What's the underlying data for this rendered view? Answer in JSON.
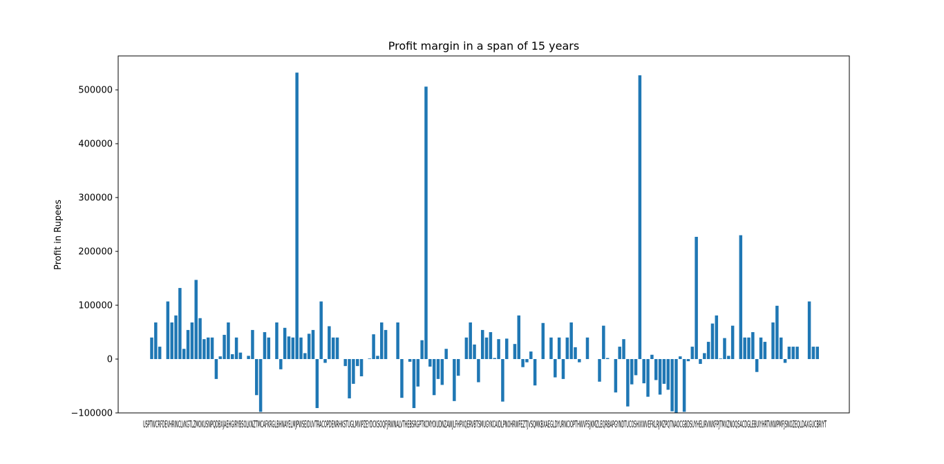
{
  "chart_data": {
    "type": "bar",
    "title": "Profit margin in a span of 15 years",
    "xlabel": "",
    "ylabel": "Profit in Rupees",
    "ylim": [
      -100000,
      563000
    ],
    "yticks": [
      -100000,
      0,
      100000,
      200000,
      300000,
      400000,
      500000
    ],
    "ytick_labels": [
      "−100000",
      "0",
      "100000",
      "200000",
      "300000",
      "400000",
      "500000"
    ],
    "grid": false,
    "bar_color": "#1f77b4",
    "x_tick_text": "USPTWCRFDEVHRINCLVKGTLZMOKUSNPQDBXJAEHGIRYBSOLKNZTMCAFKRGLBHNAYELMJPWSEIDUVTRACOPDENRHKSTUGLMVIPZEYDCKSOQFJRWNALVTHEBSRGPTKCMYOIUDNZAWJLFHPXQERVBTSMUGYKCAIDLPNOHRWFEZTJVSQMKBXAEGLDYURNCIOPTHWVFSJKMZLEQRBAPGYNDTUCOSHIXWVEFKLRJMZPQTNAOCGBDSUYHELIRVWKFPJTMXZNOQSACDGLEBUIYHRTVKWPMFJSNOZEQLDAXGUCBRIYT",
    "values": [
      40000,
      68000,
      23000,
      0,
      107000,
      68000,
      81000,
      132000,
      19000,
      54000,
      68000,
      147000,
      76000,
      37000,
      40000,
      40000,
      -37000,
      5000,
      45000,
      68000,
      9000,
      40000,
      12000,
      0,
      6000,
      54000,
      -67000,
      -98000,
      50000,
      40000,
      0,
      68000,
      -19000,
      58000,
      42000,
      40000,
      532000,
      40000,
      11000,
      47000,
      54000,
      -91000,
      107000,
      -7000,
      61000,
      40000,
      40000,
      0,
      -13000,
      -73000,
      -46000,
      -13000,
      -32000,
      0,
      1000,
      46000,
      6000,
      68000,
      54000,
      0,
      0,
      68000,
      -72000,
      0,
      -5000,
      -91000,
      -51000,
      35000,
      506000,
      -14000,
      -67000,
      -37000,
      -48000,
      19000,
      0,
      -78000,
      -31000,
      0,
      40000,
      68000,
      27000,
      -43000,
      54000,
      40000,
      50000,
      2000,
      37000,
      -79000,
      38000,
      0,
      28000,
      81000,
      -15000,
      -6000,
      14000,
      -49000,
      0,
      67000,
      0,
      40000,
      -34000,
      40000,
      -37000,
      40000,
      68000,
      22000,
      -6000,
      0,
      40000,
      0,
      0,
      -42000,
      62000,
      2000,
      0,
      -62000,
      23000,
      37000,
      -88000,
      -47000,
      -30000,
      527000,
      -45000,
      -70000,
      8000,
      -39000,
      -66000,
      -46000,
      -57000,
      -97000,
      -100000,
      5000,
      -98000,
      -4000,
      23000,
      227000,
      -9000,
      11000,
      32000,
      66000,
      81000,
      1000,
      39000,
      6000,
      62000,
      0,
      230000,
      40000,
      40000,
      50000,
      -24000,
      40000,
      32000,
      0,
      68000,
      99000,
      40000,
      -7000,
      23000,
      23000,
      23000,
      0,
      0,
      107000,
      23000,
      23000
    ]
  }
}
